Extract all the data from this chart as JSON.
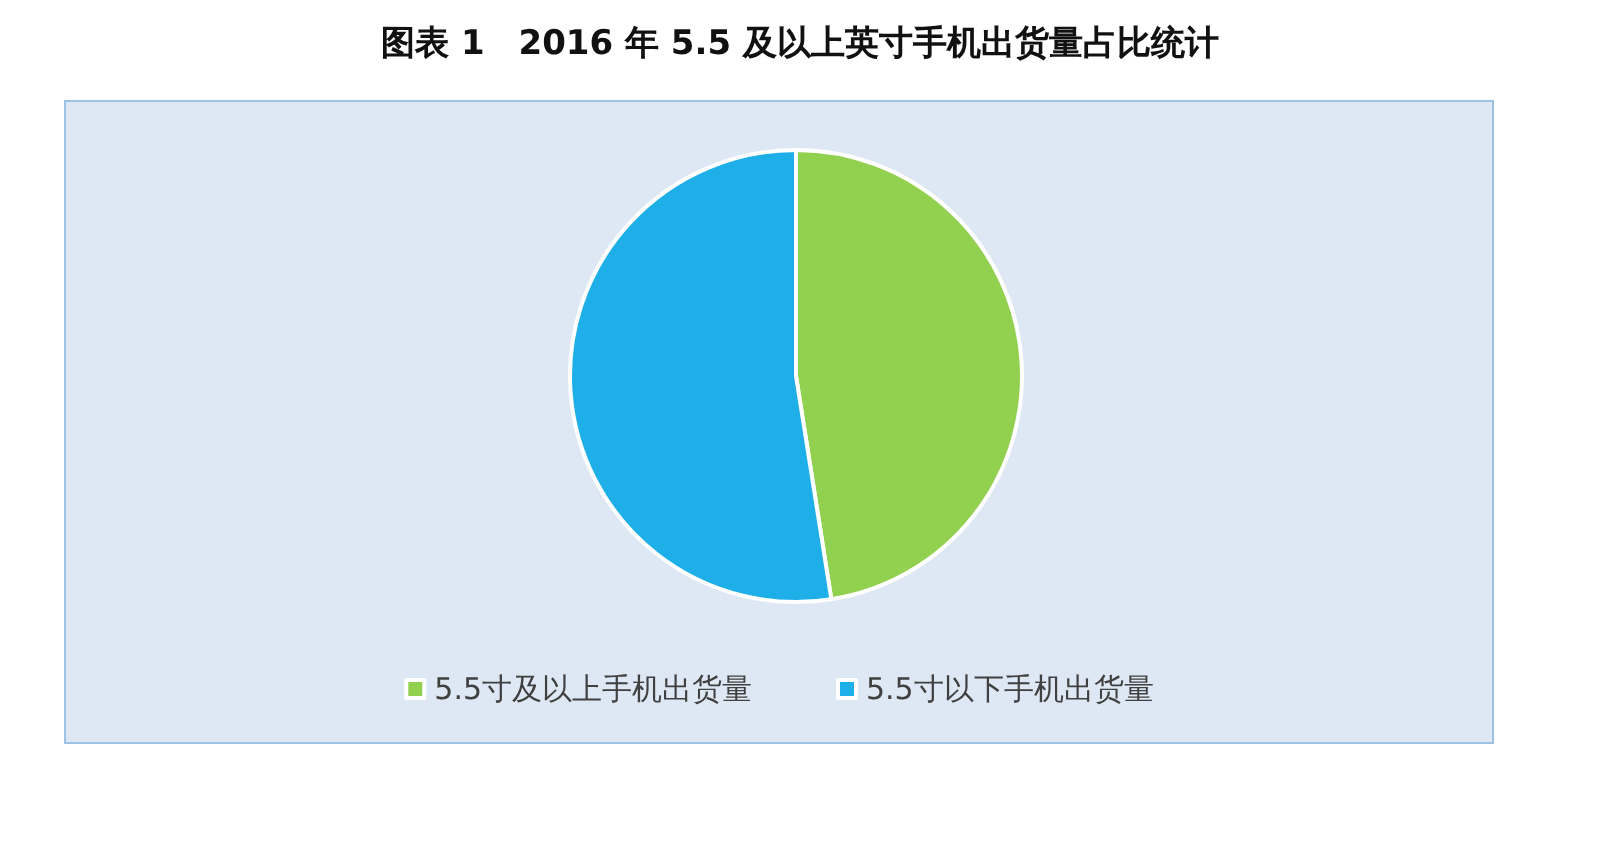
{
  "chart_data": {
    "type": "pie",
    "title": "图表 1　2016 年 5.5 及以上英寸手机出货量占比统计",
    "categories": [
      "5.5寸及以上手机出货量",
      "5.5寸以下手机出货量"
    ],
    "values": [
      47.5,
      52.5
    ],
    "colors": [
      "#92d050",
      "#1fafe8"
    ],
    "legend": "bottom"
  }
}
